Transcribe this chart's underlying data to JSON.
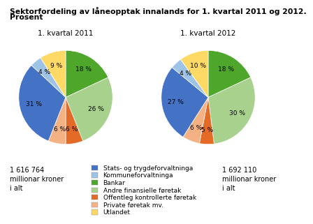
{
  "title_line1": "Sektorfordeling av låneopptak innalands for 1. kvartal 2011 og 2012.",
  "title_line2": "Prosent",
  "subtitle1": "1. kvartal 2011",
  "subtitle2": "1. kvartal 2012",
  "total1": "1 616 764\nmillionar kroner\ni alt",
  "total2": "1 692 110\nmillionar kroner\ni alt",
  "labels": [
    "Stats- og trygdeforvaltninga",
    "Kommuneforvaltninga",
    "Bankar",
    "Andre finansielle føretak",
    "Offentleg kontrollerte føretak",
    "Private føretak mv.",
    "Utlandet"
  ],
  "colors": [
    "#4472C4",
    "#9DC3E6",
    "#4EA72A",
    "#A9D18E",
    "#E36B27",
    "#F4B183",
    "#FFD966"
  ],
  "values_2011": [
    31,
    4,
    18,
    26,
    6,
    6,
    9
  ],
  "values_2012": [
    27,
    4,
    18,
    30,
    5,
    6,
    10
  ],
  "order": [
    2,
    3,
    4,
    5,
    0,
    1,
    6
  ],
  "pct_2011": [
    "18 %",
    "26 %",
    "6 %",
    "6 %",
    "31 %",
    "4 %",
    "9 %"
  ],
  "pct_2012": [
    "18 %",
    "30 %",
    "5 %",
    "6 %",
    "27 %",
    "4 %",
    "10 %"
  ],
  "background_color": "#FFFFFF",
  "title_fontsize": 7.8,
  "label_fontsize": 6.5,
  "legend_fontsize": 6.5,
  "subtitle_fontsize": 7.5,
  "total_fontsize": 7.0
}
